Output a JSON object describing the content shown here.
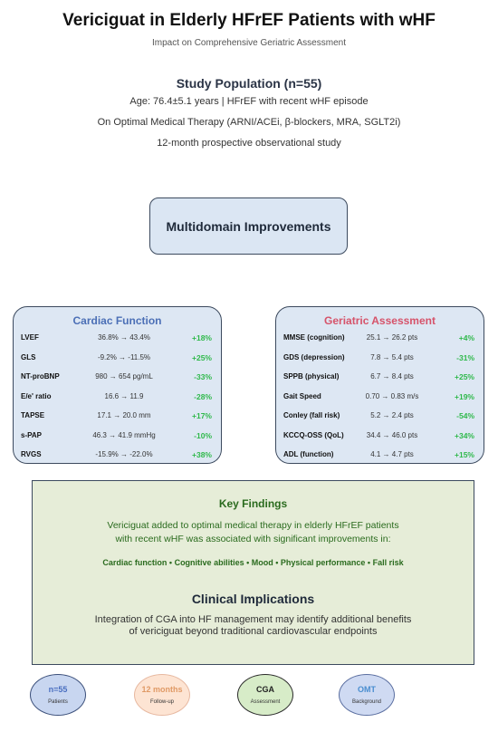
{
  "header": {
    "title": "Vericiguat in Elderly HFrEF Patients with wHF",
    "subtitle": "Impact on Comprehensive Geriatric Assessment"
  },
  "population": {
    "title": "Study Population (n=55)",
    "line1": "Age: 76.4±5.1 years | HFrEF with recent wHF episode",
    "line2": "On Optimal Medical Therapy (ARNI/ACEi, β-blockers, MRA, SGLT2i)",
    "line3": "12-month prospective observational study"
  },
  "multidomain": {
    "label": "Multidomain Improvements"
  },
  "cardiac": {
    "title": "Cardiac Function",
    "rows": [
      {
        "label": "LVEF",
        "value": "36.8% → 43.4%",
        "change": "+18%"
      },
      {
        "label": "GLS",
        "value": "-9.2% → -11.5%",
        "change": "+25%"
      },
      {
        "label": "NT-proBNP",
        "value": "980 → 654 pg/mL",
        "change": "-33%"
      },
      {
        "label": "E/e' ratio",
        "value": "16.6 → 11.9",
        "change": "-28%"
      },
      {
        "label": "TAPSE",
        "value": "17.1 → 20.0 mm",
        "change": "+17%"
      },
      {
        "label": "s-PAP",
        "value": "46.3 → 41.9 mmHg",
        "change": "-10%"
      },
      {
        "label": "RVGS",
        "value": "-15.9% → -22.0%",
        "change": "+38%"
      }
    ]
  },
  "geriatric": {
    "title": "Geriatric Assessment",
    "rows": [
      {
        "label": "MMSE (cognition)",
        "value": "25.1 → 26.2 pts",
        "change": "+4%"
      },
      {
        "label": "GDS (depression)",
        "value": "7.8 → 5.4 pts",
        "change": "-31%"
      },
      {
        "label": "SPPB (physical)",
        "value": "6.7 → 8.4 pts",
        "change": "+25%"
      },
      {
        "label": "Gait Speed",
        "value": "0.70 → 0.83 m/s",
        "change": "+19%"
      },
      {
        "label": "Conley (fall risk)",
        "value": "5.2 → 2.4 pts",
        "change": "-54%"
      },
      {
        "label": "KCCQ-OSS (QoL)",
        "value": "34.4 → 46.0 pts",
        "change": "+34%"
      },
      {
        "label": "ADL (function)",
        "value": "4.1 → 4.7 pts",
        "change": "+15%"
      }
    ]
  },
  "findings": {
    "title": "Key Findings",
    "text_line1": "Vericiguat added to optimal medical therapy in elderly HFrEF patients",
    "text_line2": "with recent wHF was associated with significant improvements in:",
    "list": "Cardiac function • Cognitive abilities • Mood • Physical performance • Fall risk",
    "implications_title": "Clinical Implications",
    "implications_line1": "Integration of CGA into HF management may identify additional benefits",
    "implications_line2": "of vericiguat beyond traditional cardiovascular endpoints"
  },
  "badges": [
    {
      "value": "n=55",
      "label": "Patients"
    },
    {
      "value": "12 months",
      "label": "Follow-up"
    },
    {
      "value": "CGA",
      "label": "Assessment"
    },
    {
      "value": "OMT",
      "label": "Background"
    }
  ],
  "colors": {
    "change_text": "#2fb94b",
    "cardiac_title": "#4b6fb6",
    "geriatric_title": "#d6536a",
    "findings_text": "#2a6b1e"
  }
}
